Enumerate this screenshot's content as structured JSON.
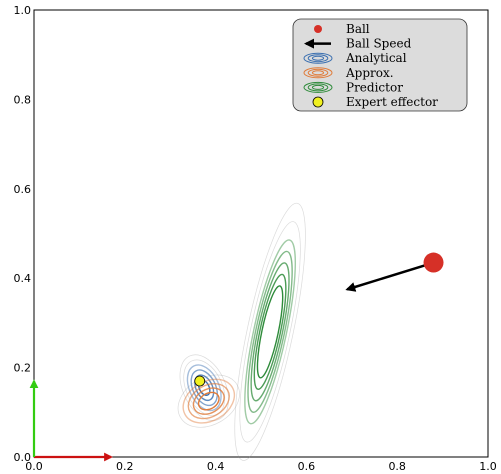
{
  "chart_data": {
    "type": "scatter",
    "xlim": [
      0.0,
      1.0
    ],
    "ylim": [
      0.0,
      1.0
    ],
    "grid": false,
    "legend_position": "top-right",
    "x_ticks": [
      0.0,
      0.2,
      0.4,
      0.6,
      0.8,
      1.0
    ],
    "y_ticks": [
      0.0,
      0.2,
      0.4,
      0.6,
      0.8,
      1.0
    ],
    "x_tick_labels": [
      "0.0",
      "0.2",
      "0.4",
      "0.6",
      "0.8",
      "1.0"
    ],
    "y_tick_labels": [
      "0.0",
      "0.2",
      "0.4",
      "0.6",
      "0.8",
      "1.0"
    ],
    "legend": [
      {
        "label": "Ball",
        "marker": "ball"
      },
      {
        "label": "Ball Speed",
        "marker": "arrow"
      },
      {
        "label": "Analytical",
        "marker": "contour",
        "color": "#3a6fb0"
      },
      {
        "label": "Approx.",
        "marker": "contour",
        "color": "#e07b39"
      },
      {
        "label": "Predictor",
        "marker": "contour",
        "color": "#2e8b3a"
      },
      {
        "label": "Expert effector",
        "marker": "effector"
      }
    ],
    "ball": {
      "x": 0.88,
      "y": 0.435,
      "color": "#d63027"
    },
    "ball_speed": {
      "from": [
        0.865,
        0.43
      ],
      "to": [
        0.69,
        0.375
      ],
      "color": "#000000"
    },
    "expert_effector": {
      "x": 0.365,
      "y": 0.17,
      "color": "#f0f020"
    },
    "axis_arrows": [
      {
        "name": "x-axis",
        "from": [
          0.0,
          0.0
        ],
        "to": [
          0.17,
          0.0
        ],
        "color": "#cc1111"
      },
      {
        "name": "y-axis",
        "from": [
          0.0,
          0.0
        ],
        "to": [
          0.0,
          0.17
        ],
        "color": "#33cc11"
      }
    ],
    "contours": [
      {
        "series": "Predictor",
        "color": "#2e8b3a",
        "center": [
          0.52,
          0.28
        ],
        "semi_axes": [
          0.018,
          0.105
        ],
        "tilt_deg": 12,
        "levels": [
          1.0,
          1.25,
          1.5,
          1.75,
          2.0
        ],
        "fade_levels": [
          2.4,
          2.8
        ]
      },
      {
        "series": "Analytical",
        "color": "#3a6fb0",
        "center": [
          0.375,
          0.155
        ],
        "semi_axes": [
          0.018,
          0.03
        ],
        "tilt_deg": -25,
        "levels": [
          0.6,
          1.0,
          1.4,
          1.8
        ],
        "fade_levels": [
          2.2,
          2.6
        ]
      },
      {
        "series": "Approx.",
        "color": "#e07b39",
        "center": [
          0.385,
          0.125
        ],
        "semi_axes": [
          0.03,
          0.022
        ],
        "tilt_deg": -30,
        "levels": [
          0.8,
          1.2,
          1.6,
          2.0
        ],
        "fade_levels": [
          2.4
        ]
      }
    ]
  }
}
